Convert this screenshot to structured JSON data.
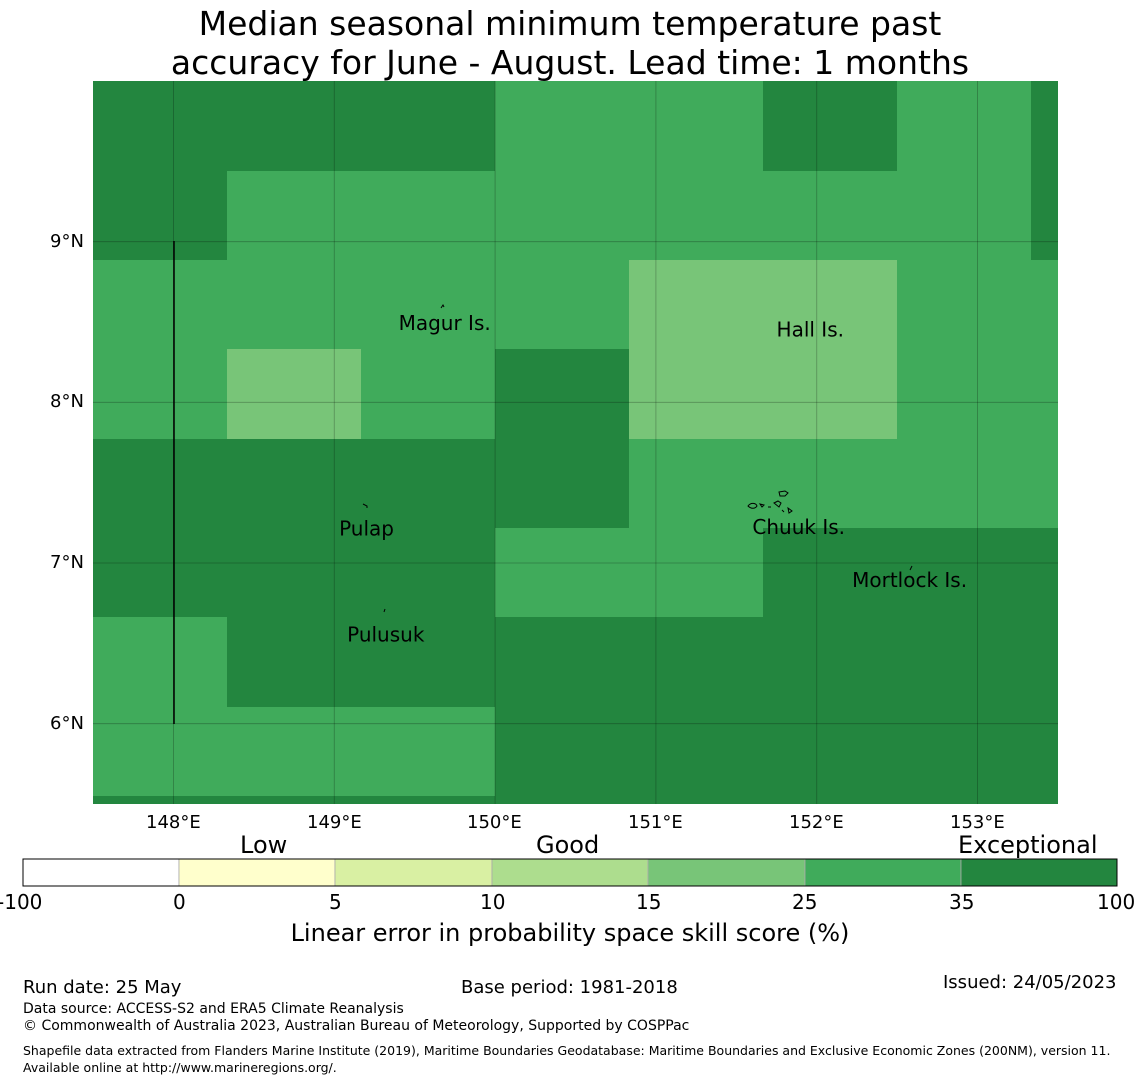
{
  "title": {
    "line1": "Median seasonal minimum temperature past",
    "line2": "accuracy for June - August. Lead time: 1 months"
  },
  "colors": {
    "dark_green": "#23863f",
    "mid_green": "#40ab5b",
    "light_green": "#78c578"
  },
  "map": {
    "lon_range": [
      147.5,
      153.5
    ],
    "lat_range": [
      5.5,
      10.0
    ],
    "lat_ticks": [
      "9°N",
      "8°N",
      "7°N",
      "6°N"
    ],
    "lon_ticks": [
      "148°E",
      "149°E",
      "150°E",
      "151°E",
      "152°E",
      "153°E"
    ],
    "labels": [
      {
        "text": "Magur Is.",
        "lon": 149.4,
        "lat": 8.5
      },
      {
        "text": "Hall Is.",
        "lon": 151.75,
        "lat": 8.46
      },
      {
        "text": "Pulap",
        "lon": 149.03,
        "lat": 7.22
      },
      {
        "text": "Chuuk Is.",
        "lon": 151.6,
        "lat": 7.23
      },
      {
        "text": "Mortlock Is.",
        "lon": 152.22,
        "lat": 6.9
      },
      {
        "text": "Pulusuk",
        "lon": 149.08,
        "lat": 6.56
      }
    ]
  },
  "colorbar": {
    "categories": [
      "Low",
      "Good",
      "Exceptional"
    ],
    "ticks": [
      "-100",
      "0",
      "5",
      "10",
      "15",
      "25",
      "35",
      "100"
    ],
    "colors": [
      "#ffffff",
      "#ffffcc",
      "#d9f0a3",
      "#addd8e",
      "#78c578",
      "#40ab5b",
      "#23863f"
    ],
    "label": "Linear error in probability space skill score (%)"
  },
  "footer": {
    "run_date": "Run date: 25 May",
    "base_period": "Base period: 1981-2018",
    "issued": "Issued: 24/05/2023",
    "data_source": "Data source: ACCESS-S2 and ERA5 Climate Reanalysis",
    "copyright": "© Commonwealth of Australia 2023, Australian Bureau of Meteorology, Supported by COSPPac",
    "shapefile": "Shapefile data extracted from Flanders Marine Institute (2019), Maritime Boundaries Geodatabase: Maritime Boundaries and Exclusive Economic Zones (200NM), version 11. Available online at http://www.marineregions.org/."
  }
}
